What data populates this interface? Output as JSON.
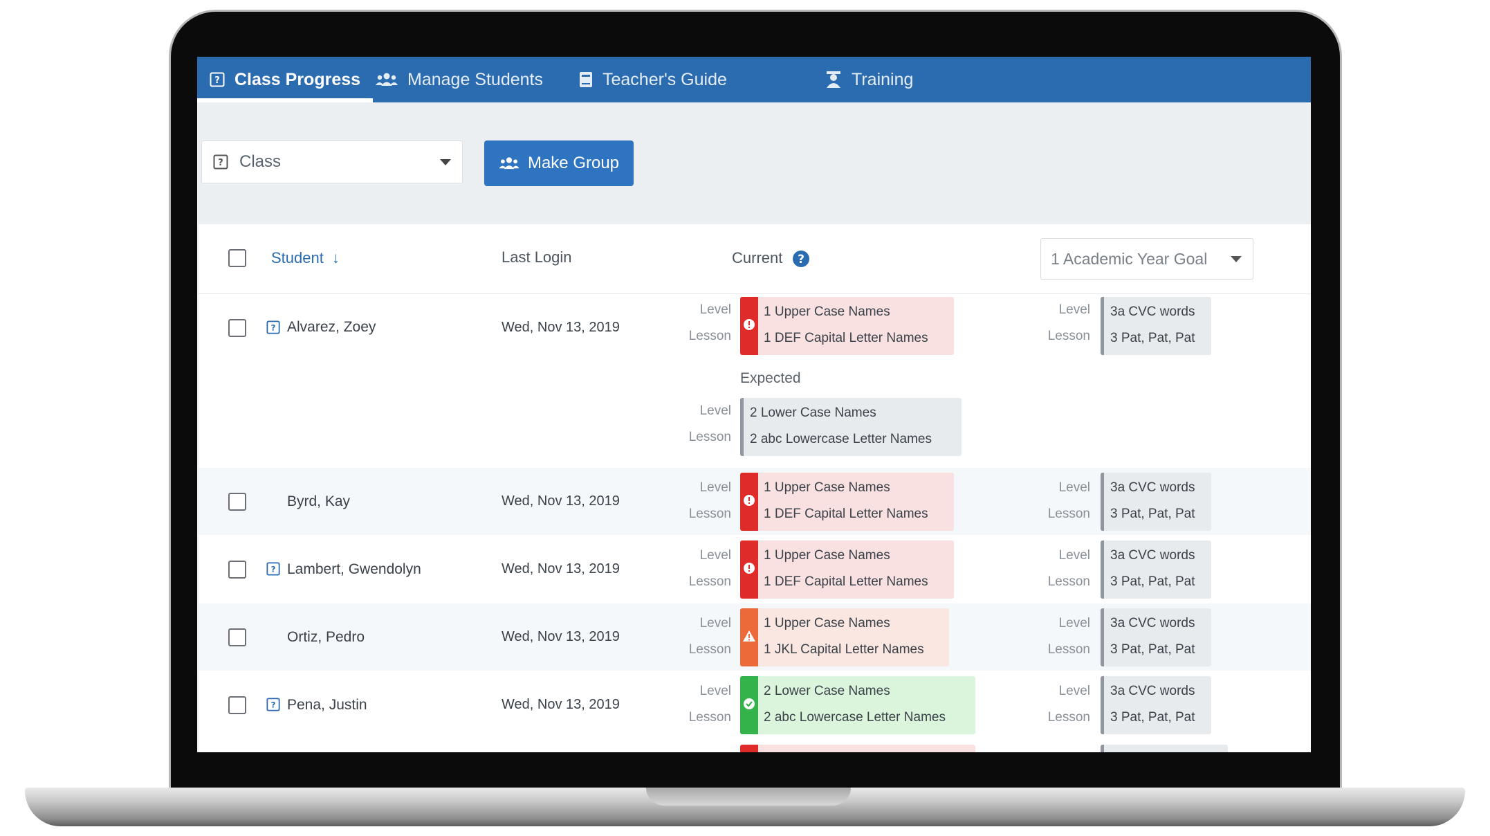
{
  "nav": {
    "tabs": [
      {
        "label": "Class Progress",
        "icon": "question-square-icon"
      },
      {
        "label": "Manage Students",
        "icon": "users-icon"
      },
      {
        "label": "Teacher's Guide",
        "icon": "book-icon"
      },
      {
        "label": "Training",
        "icon": "trainer-icon"
      }
    ]
  },
  "toolbar": {
    "class_select": "Class",
    "make_group": "Make Group"
  },
  "table": {
    "headers": {
      "student": "Student",
      "last_login": "Last Login",
      "current": "Current",
      "goal_select": "1 Academic Year Goal"
    },
    "level_label": "Level",
    "lesson_label": "Lesson",
    "expected_label": "Expected",
    "students": [
      {
        "name": "Alvarez, Zoey",
        "last_login": "Wed, Nov 13, 2019",
        "status": "red",
        "current_level": "1 Upper Case Names",
        "current_lesson": "1 DEF Capital Letter Names",
        "expected_level": "2 Lower Case Names",
        "expected_lesson": "2 abc Lowercase Letter Names",
        "goal_level": "3a CVC words",
        "goal_lesson": "3 Pat, Pat, Pat"
      },
      {
        "name": "Byrd, Kay",
        "last_login": "Wed, Nov 13, 2019",
        "status": "red",
        "current_level": "1 Upper Case Names",
        "current_lesson": "1 DEF Capital Letter Names",
        "goal_level": "3a CVC words",
        "goal_lesson": "3 Pat, Pat, Pat"
      },
      {
        "name": "Lambert, Gwendolyn",
        "last_login": "Wed, Nov 13, 2019",
        "status": "red",
        "current_level": "1 Upper Case Names",
        "current_lesson": "1 DEF Capital Letter Names",
        "goal_level": "3a CVC words",
        "goal_lesson": "3 Pat, Pat, Pat"
      },
      {
        "name": "Ortiz, Pedro",
        "last_login": "Wed, Nov 13, 2019",
        "status": "orange",
        "current_level": "1 Upper Case Names",
        "current_lesson": "1 JKL Capital Letter Names",
        "goal_level": "3a CVC words",
        "goal_lesson": "3 Pat, Pat, Pat"
      },
      {
        "name": "Pena, Justin",
        "last_login": "Wed, Nov 13, 2019",
        "status": "green",
        "current_level": "2 Lower Case Names",
        "current_lesson": "2 abc Lowercase Letter Names",
        "goal_level": "3a CVC words",
        "goal_lesson": "3 Pat, Pat, Pat"
      }
    ]
  },
  "colors": {
    "nav_blue": "#2b6cb0",
    "status_red": "#e02b2b",
    "status_orange": "#ec6a3a",
    "status_green": "#34b34a"
  }
}
